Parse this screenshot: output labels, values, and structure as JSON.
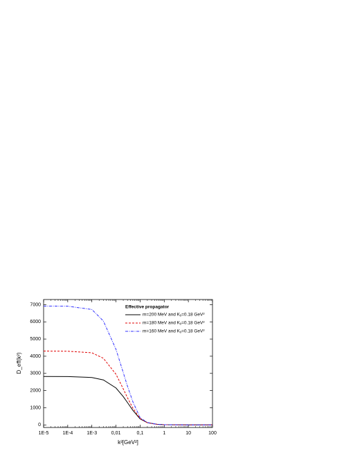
{
  "chart_data": {
    "type": "line",
    "xlabel": "k²[GeV²]",
    "ylabel": "D_eff(k²)",
    "legend_title": "Effective propagator",
    "xscale": "log",
    "legend": "upper right",
    "xlim": [
      1e-05,
      100
    ],
    "ylim": [
      -150,
      7300
    ],
    "xticks": [
      {
        "value": 1e-05,
        "label": "1E-5"
      },
      {
        "value": 0.0001,
        "label": "1E-4"
      },
      {
        "value": 0.001,
        "label": "1E-3"
      },
      {
        "value": 0.01,
        "label": "0,01"
      },
      {
        "value": 0.1,
        "label": "0,1"
      },
      1,
      10,
      100
    ],
    "yticks": [
      0,
      1000,
      2000,
      3000,
      4000,
      5000,
      6000,
      7000
    ],
    "x": [
      1e-05,
      0.0001,
      0.001,
      0.003,
      0.01,
      0.02,
      0.03,
      0.05,
      0.1,
      0.2,
      0.5,
      1,
      10,
      100
    ],
    "series": [
      {
        "name": "m=200 MeV and Kᵧ=0.18 GeV²",
        "color": "#000000",
        "dash": "solid",
        "values": [
          2820,
          2815,
          2760,
          2620,
          2150,
          1650,
          1300,
          850,
          350,
          130,
          35,
          12,
          0,
          0
        ]
      },
      {
        "name": "m=180 MeV and Kᵧ=0.18 GeV²",
        "color": "#e00000",
        "dash": "dashed",
        "values": [
          4300,
          4290,
          4200,
          3880,
          2950,
          2100,
          1580,
          980,
          370,
          125,
          33,
          11,
          0,
          0
        ]
      },
      {
        "name": "m=160 MeV and Kᵧ=0.18 GeV²",
        "color": "#3030ff",
        "dash": "dashdot",
        "values": [
          6920,
          6910,
          6720,
          6050,
          4400,
          3050,
          2250,
          1350,
          420,
          140,
          35,
          12,
          0,
          0
        ]
      }
    ]
  }
}
